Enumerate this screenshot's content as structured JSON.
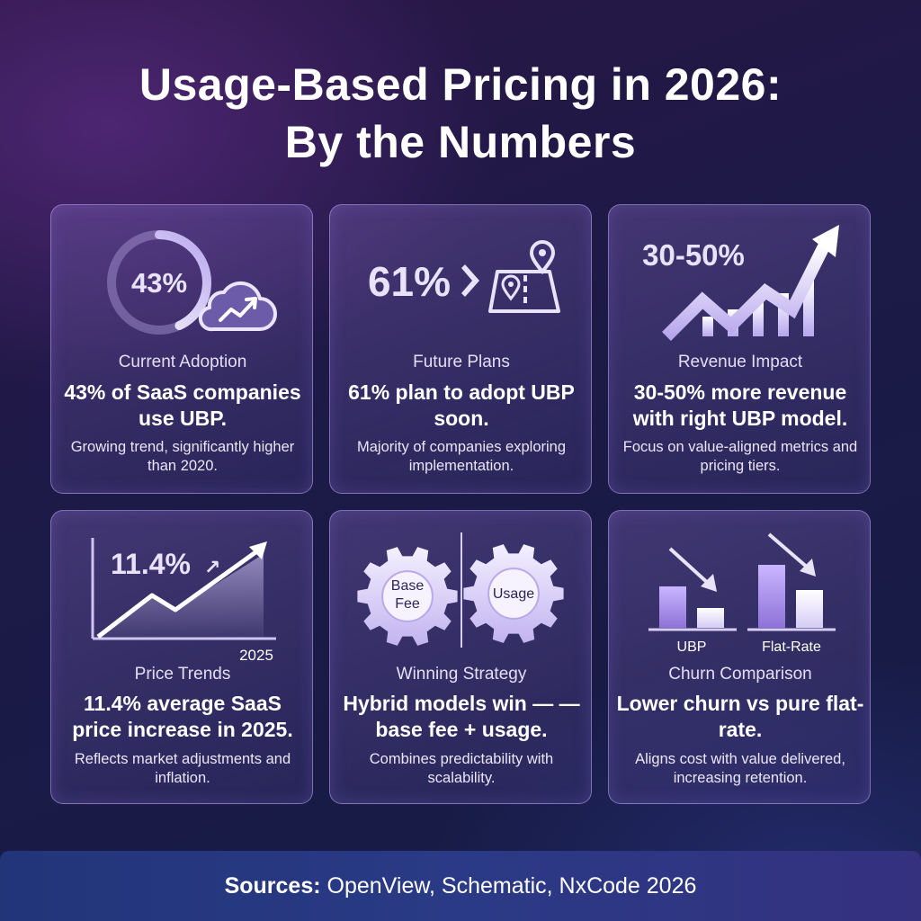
{
  "title": {
    "line1": "Usage-Based Pricing in 2026:",
    "line2": "By the Numbers"
  },
  "cards": [
    {
      "stat": "43%",
      "label": "Current Adoption",
      "headline": "43% of SaaS companies use UBP.",
      "detail": "Growing trend, significantly higher than 2020.",
      "icon": "donut-ring-cloud-trend-icon",
      "progress_percent": 43
    },
    {
      "stat": "61%",
      "label": "Future Plans",
      "headline": "61% plan to adopt UBP soon.",
      "detail": "Majority of companies exploring implementation.",
      "icon": "map-pin-roadmap-icon"
    },
    {
      "stat": "30-50%",
      "label": "Revenue Impact",
      "headline": "30-50% more revenue with right UBP model.",
      "detail": "Focus on value-aligned metrics and pricing tiers.",
      "icon": "rising-bars-arrow-icon"
    },
    {
      "stat": "11.4%",
      "stat_arrow": "↗",
      "year": "2025",
      "label": "Price Trends",
      "headline": "11.4% average SaaS price increase in 2025.",
      "detail": "Reflects market adjustments and inflation.",
      "icon": "line-chart-arrow-icon"
    },
    {
      "gear_left": "Base Fee",
      "gear_right": "Usage",
      "label": "Winning Strategy",
      "headline": "Hybrid models win — — base fee + usage.",
      "detail": "Combines predictability with scalability.",
      "icon": "gears-icon"
    },
    {
      "bar_label_left": "UBP",
      "bar_label_right": "Flat-Rate",
      "label": "Churn Comparison",
      "headline": "Lower churn vs pure flat-rate.",
      "detail": "Aligns cost with value delivered, increasing retention.",
      "icon": "churn-bars-down-arrows-icon"
    }
  ],
  "footer": {
    "prefix": "Sources:",
    "text": " OpenView, Schematic, NxCode 2026"
  },
  "colors": {
    "background_top": "#2a1646",
    "background_bottom": "#151c45",
    "card_border": "#bea9f0",
    "accent_lavender": "#c9b8ff",
    "footer": "#2a3a86"
  }
}
